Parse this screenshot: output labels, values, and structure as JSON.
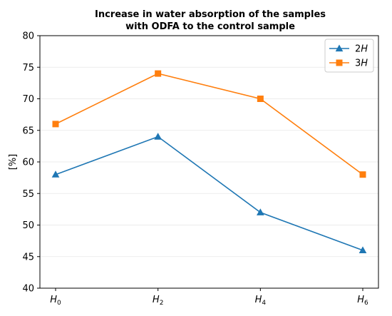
{
  "chart_data": {
    "type": "line",
    "title_lines": [
      "Increase in water absorption of the samples",
      "with ODFA to the control sample"
    ],
    "xlabel": "",
    "ylabel": "[%]",
    "categories": [
      {
        "base": "H",
        "sub": "0"
      },
      {
        "base": "H",
        "sub": "2"
      },
      {
        "base": "H",
        "sub": "4"
      },
      {
        "base": "H",
        "sub": "6"
      }
    ],
    "ylim": [
      40,
      80
    ],
    "yticks": [
      40,
      45,
      50,
      55,
      60,
      65,
      70,
      75,
      80
    ],
    "grid": "horizontal",
    "legend_position": "top-right",
    "series": [
      {
        "name": "2H",
        "name_base": "2",
        "name_italic": "H",
        "color": "#1f77b4",
        "marker": "triangle",
        "values": [
          58,
          64,
          52,
          46
        ]
      },
      {
        "name": "3H",
        "name_base": "3",
        "name_italic": "H",
        "color": "#ff7f0e",
        "marker": "square",
        "values": [
          66,
          74,
          70,
          58
        ]
      }
    ]
  }
}
